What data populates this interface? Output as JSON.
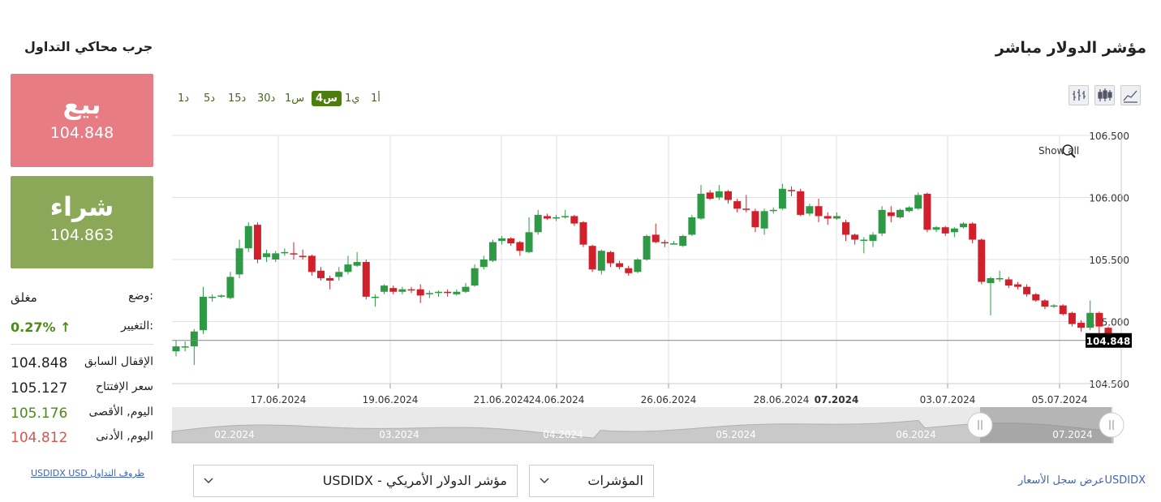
{
  "header": {
    "title": "مؤشر الدولار مباشر",
    "side_title": "جرب محاكي التداول"
  },
  "sell": {
    "label": "بيع",
    "price": "104.848"
  },
  "buy": {
    "label": "شراء",
    "price": "104.863"
  },
  "stats": {
    "status_label": "وضع:",
    "status_value": "مغلق",
    "change_label": "التغيير:",
    "change_value": "0.27%",
    "prev_close_label": "الإقفال السابق",
    "prev_close_value": "104.848",
    "open_label": "سعر الإفتتاح",
    "open_value": "105.127",
    "high_label": "اليوم, الأقصى",
    "high_value": "105.176",
    "low_label": "اليوم, الأدنى",
    "low_value": "104.812"
  },
  "links": {
    "conditions": "USDIDX USD ظروف التداول",
    "history_prefix": "USDIDX",
    "history_suffix": "عرض سجل الأسعار"
  },
  "timeframes": [
    "1أ",
    "1ي",
    "4س",
    "1س",
    "30د",
    "15د",
    "5د",
    "1د"
  ],
  "active_timeframe": "4س",
  "chart_tools": {
    "show_all": "Show all"
  },
  "selects": {
    "instrument": "USDIDX - مؤشر الدولار الأمريكي",
    "indicators": "المؤشرات"
  },
  "colors": {
    "up": "#2e9a45",
    "down": "#d0202c",
    "sell_bg": "#e77c84",
    "buy_bg": "#8aa858",
    "active_tf": "#4d7c0f"
  },
  "chart_data": {
    "type": "candlestick",
    "y_ticks": [
      "106.500",
      "106.000",
      "105.500",
      "105.000",
      "104.500"
    ],
    "ylim": [
      104.5,
      106.5
    ],
    "x_labels": [
      "17.06.2024",
      "19.06.2024",
      "21.06.2024",
      "24.06.2024",
      "26.06.2024",
      "28.06.2024",
      "07.2024",
      "03.07.2024",
      "05.07.2024"
    ],
    "current_price": "104.848",
    "navigator_labels": [
      "02.2024",
      "03.2024",
      "04.2024",
      "05.2024",
      "06.2024",
      "07.2024"
    ],
    "candles": [
      [
        104.76,
        104.8,
        104.72,
        104.85
      ],
      [
        104.8,
        104.8,
        104.76,
        104.84
      ],
      [
        104.8,
        104.92,
        104.65,
        104.94
      ],
      [
        104.93,
        105.2,
        104.9,
        105.28
      ],
      [
        105.19,
        105.2,
        105.16,
        105.22
      ],
      [
        105.2,
        105.21,
        105.19,
        105.22
      ],
      [
        105.19,
        105.36,
        105.18,
        105.4
      ],
      [
        105.38,
        105.59,
        105.35,
        105.66
      ],
      [
        105.59,
        105.77,
        105.56,
        105.8
      ],
      [
        105.78,
        105.5,
        105.47,
        105.8
      ],
      [
        105.52,
        105.55,
        105.48,
        105.58
      ],
      [
        105.5,
        105.55,
        105.48,
        105.57
      ],
      [
        105.55,
        105.56,
        105.53,
        105.59
      ],
      [
        105.55,
        105.54,
        105.5,
        105.64
      ],
      [
        105.53,
        105.52,
        105.5,
        105.58
      ],
      [
        105.53,
        105.4,
        105.37,
        105.54
      ],
      [
        105.41,
        105.35,
        105.33,
        105.44
      ],
      [
        105.35,
        105.33,
        105.26,
        105.37
      ],
      [
        105.36,
        105.4,
        105.33,
        105.44
      ],
      [
        105.4,
        105.46,
        105.38,
        105.53
      ],
      [
        105.45,
        105.48,
        105.44,
        105.56
      ],
      [
        105.48,
        105.2,
        105.18,
        105.5
      ],
      [
        105.2,
        105.2,
        105.12,
        105.22
      ],
      [
        105.24,
        105.29,
        105.22,
        105.3
      ],
      [
        105.27,
        105.24,
        105.22,
        105.29
      ],
      [
        105.24,
        105.26,
        105.22,
        105.28
      ],
      [
        105.26,
        105.25,
        105.23,
        105.28
      ],
      [
        105.26,
        105.21,
        105.15,
        105.3
      ],
      [
        105.22,
        105.23,
        105.19,
        105.25
      ],
      [
        105.23,
        105.24,
        105.2,
        105.25
      ],
      [
        105.24,
        105.23,
        105.2,
        105.26
      ],
      [
        105.22,
        105.24,
        105.21,
        105.26
      ],
      [
        105.24,
        105.28,
        105.23,
        105.31
      ],
      [
        105.29,
        105.43,
        105.28,
        105.46
      ],
      [
        105.44,
        105.5,
        105.42,
        105.53
      ],
      [
        105.49,
        105.64,
        105.48,
        105.66
      ],
      [
        105.65,
        105.67,
        105.62,
        105.69
      ],
      [
        105.67,
        105.63,
        105.61,
        105.68
      ],
      [
        105.64,
        105.57,
        105.53,
        105.65
      ],
      [
        105.56,
        105.72,
        105.55,
        105.84
      ],
      [
        105.72,
        105.86,
        105.7,
        105.9
      ],
      [
        105.85,
        105.83,
        105.82,
        105.87
      ],
      [
        105.84,
        105.84,
        105.81,
        105.86
      ],
      [
        105.84,
        105.85,
        105.83,
        105.9
      ],
      [
        105.85,
        105.79,
        105.77,
        105.86
      ],
      [
        105.8,
        105.62,
        105.6,
        105.81
      ],
      [
        105.61,
        105.42,
        105.4,
        105.62
      ],
      [
        105.41,
        105.57,
        105.38,
        105.58
      ],
      [
        105.56,
        105.47,
        105.44,
        105.57
      ],
      [
        105.47,
        105.44,
        105.42,
        105.49
      ],
      [
        105.43,
        105.39,
        105.37,
        105.45
      ],
      [
        105.4,
        105.5,
        105.39,
        105.51
      ],
      [
        105.5,
        105.69,
        105.49,
        105.7
      ],
      [
        105.7,
        105.64,
        105.63,
        105.79
      ],
      [
        105.64,
        105.63,
        105.6,
        105.66
      ],
      [
        105.63,
        105.63,
        105.62,
        105.65
      ],
      [
        105.61,
        105.69,
        105.6,
        105.7
      ],
      [
        105.7,
        105.84,
        105.69,
        105.86
      ],
      [
        105.83,
        106.03,
        105.82,
        106.1
      ],
      [
        106.04,
        105.99,
        105.98,
        106.06
      ],
      [
        106.0,
        106.05,
        105.98,
        106.1
      ],
      [
        106.05,
        105.98,
        105.95,
        106.06
      ],
      [
        105.97,
        105.91,
        105.88,
        105.99
      ],
      [
        105.91,
        105.9,
        105.88,
        106.02
      ],
      [
        105.89,
        105.76,
        105.72,
        105.91
      ],
      [
        105.75,
        105.89,
        105.7,
        105.91
      ],
      [
        105.89,
        105.9,
        105.87,
        105.92
      ],
      [
        105.91,
        106.07,
        105.9,
        106.11
      ],
      [
        106.06,
        106.05,
        106.01,
        106.09
      ],
      [
        106.05,
        105.86,
        105.85,
        106.07
      ],
      [
        105.87,
        105.93,
        105.85,
        105.95
      ],
      [
        105.93,
        105.85,
        105.8,
        105.99
      ],
      [
        105.85,
        105.83,
        105.78,
        105.88
      ],
      [
        105.83,
        105.85,
        105.82,
        105.88
      ],
      [
        105.8,
        105.7,
        105.65,
        105.82
      ],
      [
        105.7,
        105.66,
        105.62,
        105.71
      ],
      [
        105.66,
        105.66,
        105.55,
        105.68
      ],
      [
        105.65,
        105.7,
        105.6,
        105.72
      ],
      [
        105.71,
        105.9,
        105.69,
        105.93
      ],
      [
        105.88,
        105.85,
        105.8,
        105.93
      ],
      [
        105.84,
        105.9,
        105.83,
        105.91
      ],
      [
        105.89,
        105.92,
        105.88,
        105.93
      ],
      [
        105.91,
        106.02,
        105.9,
        106.04
      ],
      [
        106.03,
        105.74,
        105.72,
        106.04
      ],
      [
        105.74,
        105.76,
        105.72,
        105.77
      ],
      [
        105.76,
        105.71,
        105.69,
        105.77
      ],
      [
        105.72,
        105.75,
        105.68,
        105.76
      ],
      [
        105.76,
        105.79,
        105.75,
        105.8
      ],
      [
        105.79,
        105.66,
        105.63,
        105.8
      ],
      [
        105.66,
        105.32,
        105.3,
        105.67
      ],
      [
        105.31,
        105.35,
        105.05,
        105.36
      ],
      [
        105.34,
        105.35,
        105.32,
        105.41
      ],
      [
        105.34,
        105.29,
        105.27,
        105.36
      ],
      [
        105.3,
        105.28,
        105.26,
        105.32
      ],
      [
        105.28,
        105.22,
        105.2,
        105.3
      ],
      [
        105.22,
        105.17,
        105.16,
        105.23
      ],
      [
        105.17,
        105.12,
        105.1,
        105.18
      ],
      [
        105.12,
        105.13,
        105.11,
        105.14
      ],
      [
        105.13,
        105.06,
        105.05,
        105.14
      ],
      [
        105.07,
        104.98,
        104.96,
        105.08
      ],
      [
        104.99,
        104.95,
        104.92,
        105.01
      ],
      [
        104.95,
        105.07,
        104.93,
        105.17
      ],
      [
        105.07,
        104.96,
        104.9,
        105.08
      ],
      [
        104.95,
        104.9,
        104.88,
        104.96
      ]
    ]
  }
}
